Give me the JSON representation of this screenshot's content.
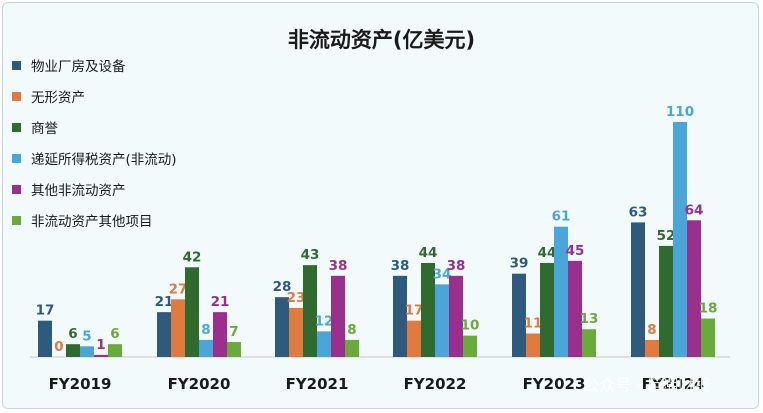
{
  "chart_data": {
    "type": "bar",
    "title": "非流动资产(亿美元)",
    "categories": [
      "FY2019",
      "FY2020",
      "FY2021",
      "FY2022",
      "FY2023",
      "FY2024"
    ],
    "series": [
      {
        "name": "物业厂房及设备",
        "color": "#2e5a7e",
        "values": [
          17,
          21,
          28,
          38,
          39,
          63
        ]
      },
      {
        "name": "无形资产",
        "color": "#e07a3f",
        "values": [
          0,
          27,
          23,
          17,
          11,
          8
        ]
      },
      {
        "name": "商誉",
        "color": "#2f6b2f",
        "values": [
          6,
          42,
          43,
          44,
          44,
          52
        ]
      },
      {
        "name": "递延所得税资产(非流动)",
        "color": "#4aa6d8",
        "values": [
          5,
          8,
          12,
          34,
          61,
          110
        ]
      },
      {
        "name": "其他非流动资产",
        "color": "#9b2f8e",
        "values": [
          1,
          21,
          38,
          38,
          45,
          64
        ]
      },
      {
        "name": "非流动资产其他项目",
        "color": "#6aaa3a",
        "values": [
          6,
          7,
          8,
          10,
          13,
          18
        ]
      }
    ],
    "ylim": [
      0,
      110
    ],
    "grid": false,
    "legend_position": "top-left"
  },
  "watermark": "公众号 · 巨潮财报"
}
